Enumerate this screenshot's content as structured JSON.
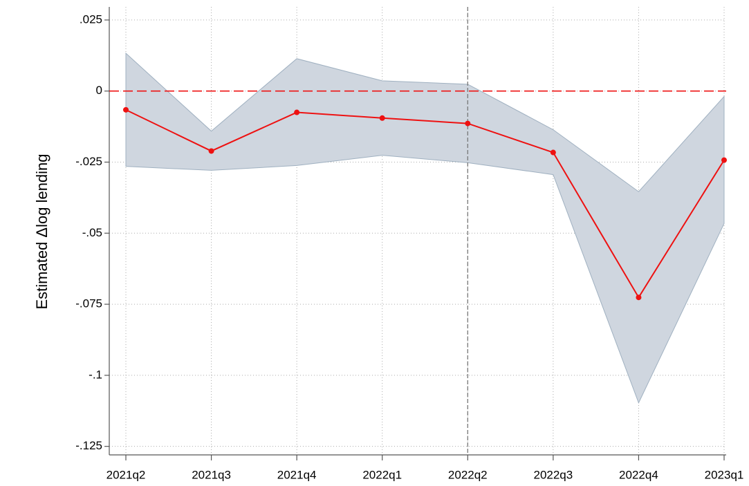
{
  "chart_data": {
    "type": "line",
    "y_label": "Estimated Δlog lending",
    "categories": [
      "2021q2",
      "2021q3",
      "2021q4",
      "2022q1",
      "2022q2",
      "2022q3",
      "2022q4",
      "2023q1"
    ],
    "values": [
      -0.0066,
      -0.0211,
      -0.0075,
      -0.0095,
      -0.0114,
      -0.0216,
      -0.0726,
      -0.0243
    ],
    "upper": [
      0.0133,
      -0.0141,
      0.0114,
      0.0036,
      0.0024,
      -0.0136,
      -0.0354,
      -0.0019
    ],
    "lower": [
      -0.0265,
      -0.0279,
      -0.0262,
      -0.0226,
      -0.0252,
      -0.0294,
      -0.1097,
      -0.0466
    ],
    "color": "#ee1111",
    "band_color": "#cfd6df",
    "band_edge_color": "#9fb0c0",
    "ylim": [
      -0.128,
      0.0296
    ],
    "yticks": [
      {
        "value": 0.025,
        "label": ".025"
      },
      0,
      {
        "value": -0.025,
        "label": "-.025"
      },
      {
        "value": -0.05,
        "label": "-.05"
      },
      {
        "value": -0.075,
        "label": "-.075"
      },
      {
        "value": -0.1,
        "label": "-.1"
      },
      {
        "value": -0.125,
        "label": "-.125"
      }
    ],
    "hline": 0,
    "vline": "2022q2",
    "grid": true
  }
}
